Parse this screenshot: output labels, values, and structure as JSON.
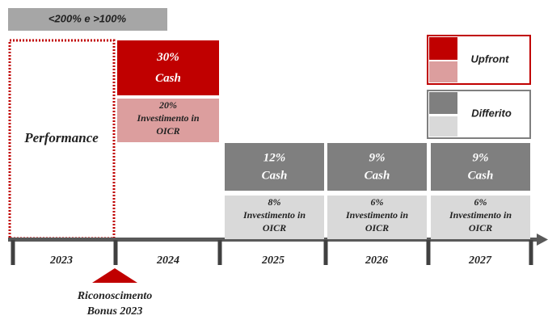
{
  "header": {
    "label": "<200% e >100%"
  },
  "performance": {
    "label": "Performance"
  },
  "blocks": [
    {
      "cash": {
        "pct": "30%",
        "label": "Cash"
      },
      "investment": {
        "pct": "20%",
        "lines": [
          "Investimento in",
          "OICR"
        ]
      }
    },
    {
      "cash": {
        "pct": "12%",
        "label": "Cash"
      },
      "investment": {
        "pct": "8%",
        "lines": [
          "Investimento in",
          "OICR"
        ]
      }
    },
    {
      "cash": {
        "pct": "9%",
        "label": "Cash"
      },
      "investment": {
        "pct": "6%",
        "lines": [
          "Investimento in",
          "OICR"
        ]
      }
    },
    {
      "cash": {
        "pct": "9%",
        "label": "Cash"
      },
      "investment": {
        "pct": "6%",
        "lines": [
          "Investimento in",
          "OICR"
        ]
      }
    }
  ],
  "legend": {
    "upfront": "Upfront",
    "deferred": "Differito"
  },
  "timeline": {
    "years": [
      "2023",
      "2024",
      "2025",
      "2026",
      "2027"
    ]
  },
  "recognition": {
    "lines": [
      "Riconoscimento",
      "Bonus 2023"
    ]
  }
}
